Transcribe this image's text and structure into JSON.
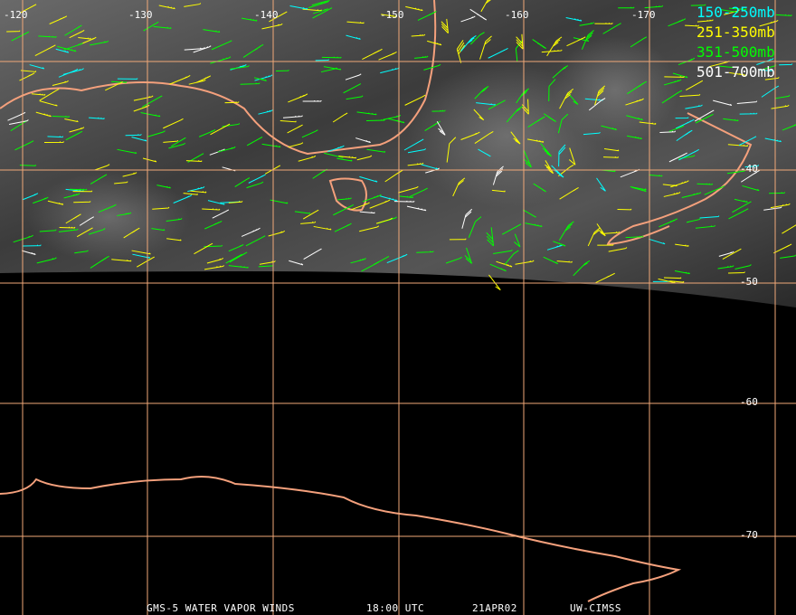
{
  "map": {
    "longitude_labels": [
      "-120",
      "-130",
      "-140",
      "-150",
      "-160",
      "-170"
    ],
    "latitude_labels": [
      "-40",
      "-50",
      "-60",
      "-70"
    ]
  },
  "legend": [
    {
      "label": "150-250mb",
      "color": "#00ffff"
    },
    {
      "label": "251-350mb",
      "color": "#ffff00"
    },
    {
      "label": "351-500mb",
      "color": "#00ff00"
    },
    {
      "label": "501-700mb",
      "color": "#ffffff"
    }
  ],
  "footer": [
    "GMS-5 WATER VAPOR WINDS",
    "18:00 UTC",
    "21APR02",
    "UW-CIMSS"
  ]
}
